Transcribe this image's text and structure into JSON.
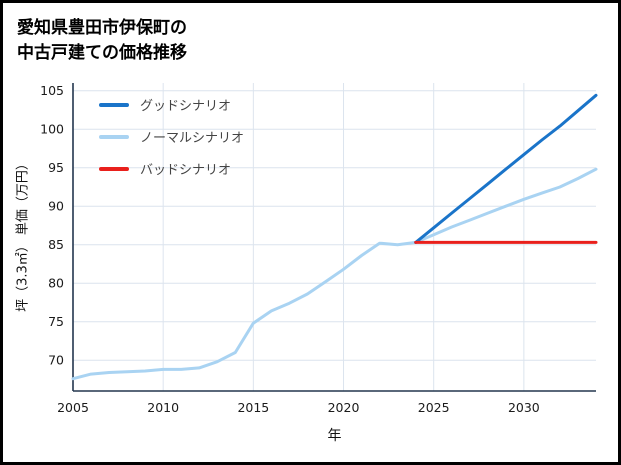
{
  "page": {
    "title_line1": "愛知県豊田市伊保町の",
    "title_line2": "中古戸建ての価格推移"
  },
  "chart_data": {
    "type": "line",
    "title": "愛知県豊田市伊保町の中古戸建ての価格推移",
    "xlabel": "年",
    "ylabel": "坪（3.3㎡） 単価（万円）",
    "xlim": [
      2005,
      2034
    ],
    "ylim": [
      66,
      106
    ],
    "xticks": [
      2005,
      2010,
      2015,
      2020,
      2025,
      2030
    ],
    "yticks": [
      70,
      75,
      80,
      85,
      90,
      95,
      100,
      105
    ],
    "grid": true,
    "grid_color": "#dce4ee",
    "axis_color": "#23364e",
    "tick_label_color": "#1b1b1b",
    "legend_position": "top-left",
    "draw_order": [
      1,
      0,
      2
    ],
    "series": [
      {
        "name": "グッドシナリオ",
        "color": "#1a74c9",
        "x": [
          2024,
          2025,
          2026,
          2027,
          2028,
          2029,
          2030,
          2031,
          2032,
          2033,
          2034
        ],
        "y": [
          85.3,
          87.2,
          89.1,
          91.0,
          92.9,
          94.8,
          96.7,
          98.6,
          100.4,
          102.4,
          104.4
        ]
      },
      {
        "name": "ノーマルシナリオ",
        "color": "#a9d3f2",
        "x": [
          2005,
          2006,
          2007,
          2008,
          2009,
          2010,
          2011,
          2012,
          2013,
          2014,
          2015,
          2016,
          2017,
          2018,
          2019,
          2020,
          2021,
          2022,
          2023,
          2024,
          2025,
          2026,
          2027,
          2028,
          2029,
          2030,
          2031,
          2032,
          2033,
          2034
        ],
        "y": [
          67.6,
          68.2,
          68.4,
          68.5,
          68.6,
          68.8,
          68.8,
          69.0,
          69.8,
          71.0,
          74.8,
          76.4,
          77.4,
          78.6,
          80.2,
          81.8,
          83.6,
          85.2,
          85.0,
          85.3,
          86.3,
          87.3,
          88.2,
          89.1,
          90.0,
          90.9,
          91.7,
          92.5,
          93.6,
          94.8
        ]
      },
      {
        "name": "バッドシナリオ",
        "color": "#e9201c",
        "x": [
          2024,
          2025,
          2026,
          2027,
          2028,
          2029,
          2030,
          2031,
          2032,
          2033,
          2034
        ],
        "y": [
          85.3,
          85.3,
          85.3,
          85.3,
          85.3,
          85.3,
          85.3,
          85.3,
          85.3,
          85.3,
          85.3
        ]
      }
    ]
  }
}
